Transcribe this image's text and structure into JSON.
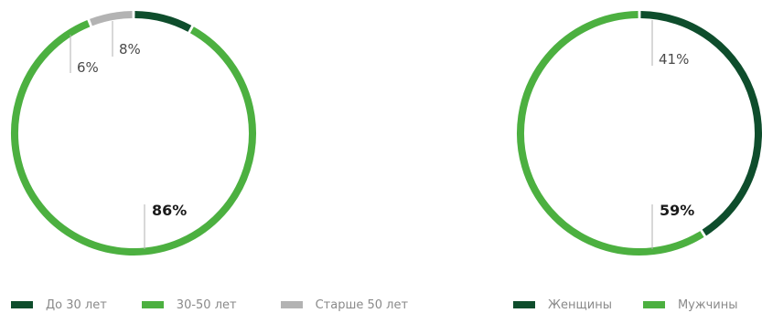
{
  "chart_data": [
    {
      "type": "pie",
      "donut": true,
      "categories": [
        "До 30 лет",
        "30-50 лет",
        "Старше 50 лет"
      ],
      "values": [
        8,
        86,
        6
      ],
      "labels": [
        "8%",
        "86%",
        "6%"
      ],
      "colors": [
        "#0e4d2c",
        "#4cb040",
        "#b3b3b3"
      ],
      "legend": "bottom"
    },
    {
      "type": "pie",
      "donut": true,
      "categories": [
        "Женщины",
        "Мужчины"
      ],
      "values": [
        41,
        59
      ],
      "labels": [
        "41%",
        "59%"
      ],
      "colors": [
        "#0e4d2c",
        "#4cb040"
      ],
      "legend": "bottom"
    }
  ]
}
